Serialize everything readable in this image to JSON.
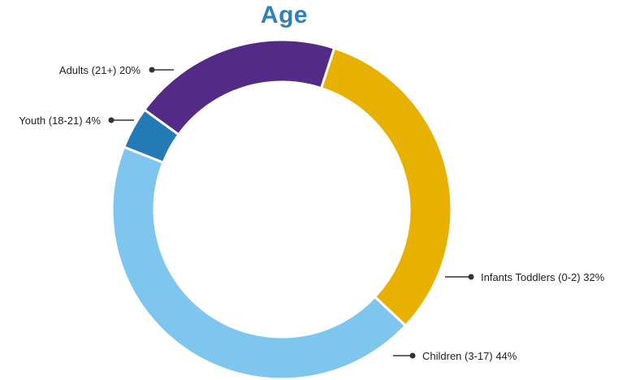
{
  "chart_data": {
    "type": "pie",
    "title": "Age",
    "donut": true,
    "legend": "callout-labels",
    "slices": [
      {
        "label": "Infants Toddlers (0-2) 32%",
        "category": "Infants Toddlers (0-2)",
        "value": 32,
        "color": "#E8B100"
      },
      {
        "label": "Children (3-17) 44%",
        "category": "Children (3-17)",
        "value": 44,
        "color": "#7FC6EE"
      },
      {
        "label": "Youth (18-21) 4%",
        "category": "Youth (18-21)",
        "value": 4,
        "color": "#237AB5"
      },
      {
        "label": "Adults (21+) 20%",
        "category": "Adults (21+)",
        "value": 20,
        "color": "#532A85"
      }
    ],
    "title_color": "#2C80BC"
  }
}
